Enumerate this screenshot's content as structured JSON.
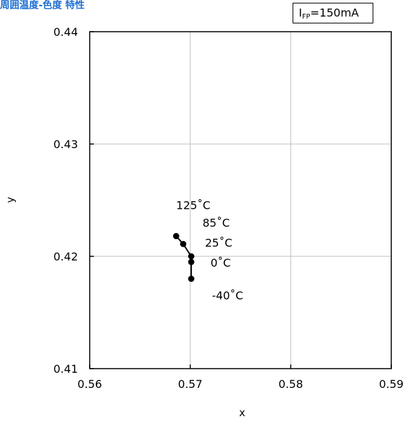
{
  "page": {
    "title": "周囲温度-色度 特性",
    "condition": {
      "symbol": "I",
      "subscript": "FP",
      "value": "=150mA"
    }
  },
  "chart_data": {
    "type": "line",
    "title": "",
    "xlabel": "x",
    "ylabel": "y",
    "xlim": [
      0.56,
      0.59
    ],
    "ylim": [
      0.41,
      0.44
    ],
    "x_ticks": [
      "0.56",
      "0.57",
      "0.58",
      "0.59"
    ],
    "y_ticks": [
      "0.41",
      "0.42",
      "0.43",
      "0.44"
    ],
    "grid": true,
    "series": [
      {
        "values": [
          {
            "x": 0.5701,
            "y": 0.418,
            "label": "-40˚C"
          },
          {
            "x": 0.5701,
            "y": 0.4195,
            "label": "0˚C"
          },
          {
            "x": 0.5701,
            "y": 0.42,
            "label": "25˚C"
          },
          {
            "x": 0.5693,
            "y": 0.4211,
            "label": "85˚C"
          },
          {
            "x": 0.5686,
            "y": 0.4218,
            "label": "125˚C"
          }
        ]
      }
    ],
    "colors": {
      "line": "#000000",
      "grid": "#bfbfbf",
      "title": "#1f6fd0"
    }
  }
}
